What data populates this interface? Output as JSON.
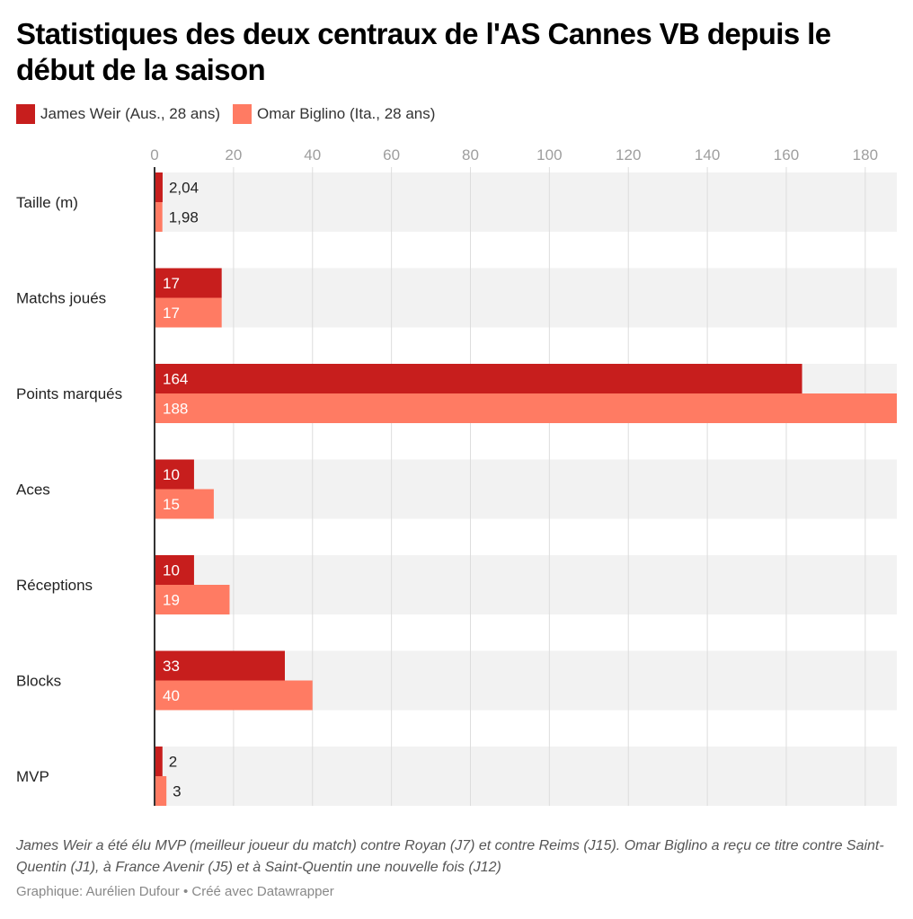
{
  "chart_data": {
    "type": "bar",
    "orientation": "horizontal",
    "title": "Statistiques des deux centraux de l'AS Cannes VB depuis le début de la saison",
    "categories": [
      "Taille (m)",
      "Matchs joués",
      "Points marqués",
      "Aces",
      "Réceptions",
      "Blocks",
      "MVP"
    ],
    "series": [
      {
        "name": "James Weir (Aus., 28 ans)",
        "color": "#c71e1d",
        "values": [
          2.04,
          17,
          164,
          10,
          10,
          33,
          2
        ],
        "labels": [
          "2,04",
          "17",
          "164",
          "10",
          "10",
          "33",
          "2"
        ]
      },
      {
        "name": "Omar Biglino (Ita., 28 ans)",
        "color": "#ff7b63",
        "values": [
          1.98,
          17,
          188,
          15,
          19,
          40,
          3
        ],
        "labels": [
          "1,98",
          "17",
          "188",
          "15",
          "19",
          "40",
          "3"
        ]
      }
    ],
    "xlim": [
      0,
      188
    ],
    "xticks": [
      0,
      20,
      40,
      60,
      80,
      100,
      120,
      140,
      160,
      180
    ],
    "xlabel": "",
    "ylabel": "",
    "grid": true,
    "legend_position": "top-left",
    "band_color": "#f2f2f2"
  },
  "notes": "James Weir a été élu MVP (meilleur joueur du match) contre Royan (J7) et contre Reims (J15). Omar Biglino a reçu ce titre contre Saint-Quentin (J1), à France Avenir (J5) et à Saint-Quentin une nouvelle fois (J12)",
  "credit": "Graphique: Aurélien Dufour • Créé avec Datawrapper"
}
